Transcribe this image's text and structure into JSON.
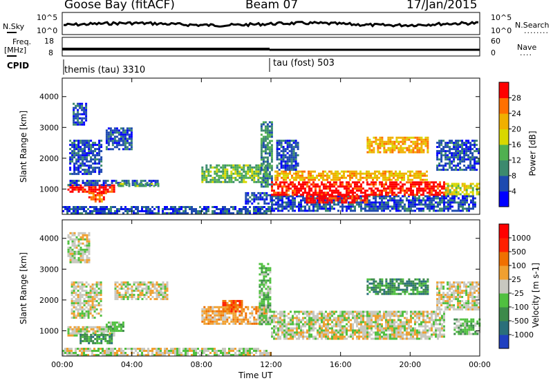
{
  "header": {
    "station": "Goose Bay (fitACF)",
    "beam": "Beam 07",
    "date": "17/Jan/2015"
  },
  "noise_panel": {
    "left_label_top": "N.Sky",
    "right_label_top": "N.Search",
    "right_dots": "........",
    "left_ticks": [
      "10^5",
      "10^0"
    ],
    "right_ticks": [
      "10^5",
      "10^0"
    ]
  },
  "freq_panel": {
    "left_label": "Freq.",
    "left_unit": "[MHz]",
    "right_label": "Nave",
    "right_dots": "....",
    "left_ticks": [
      "18",
      "8"
    ],
    "right_ticks": [
      "60",
      "0"
    ]
  },
  "cpid": {
    "label": "CPID",
    "modes": [
      "themis (tau) 3310",
      "tau (fost) 503"
    ]
  },
  "chart_data": [
    {
      "type": "heatmap",
      "title": "",
      "xlabel": "Time UT",
      "ylabel": "Slant Range [km]",
      "x_ticks": [
        "00:00",
        "04:00",
        "08:00",
        "12:00",
        "16:00",
        "20:00",
        "00:00"
      ],
      "y_ticks": [
        "1000",
        "2000",
        "3000",
        "4000"
      ],
      "xlim_hours": [
        0,
        24
      ],
      "ylim_km": [
        180,
        4600
      ],
      "colorbar": {
        "label": "Power [dB]",
        "ticks": [
          "4",
          "8",
          "12",
          "16",
          "20",
          "24",
          "28"
        ],
        "colors": [
          "#0000ff",
          "#1e4ab0",
          "#3c8a6e",
          "#50b050",
          "#d8d800",
          "#f0b000",
          "#ff7000",
          "#ff0000"
        ]
      },
      "regions": [
        {
          "t0": 0.0,
          "t1": 12.0,
          "r0": 200,
          "r1": 450,
          "level": 1
        },
        {
          "t0": 0.3,
          "t1": 3.0,
          "r0": 900,
          "r1": 1150,
          "level": 7
        },
        {
          "t0": 1.5,
          "t1": 2.5,
          "r0": 600,
          "r1": 900,
          "level": 6
        },
        {
          "t0": 0.3,
          "t1": 5.5,
          "r0": 1100,
          "r1": 1300,
          "level": 1
        },
        {
          "t0": 3.2,
          "t1": 5.5,
          "r0": 1080,
          "r1": 1200,
          "level": 3
        },
        {
          "t0": 0.4,
          "t1": 2.2,
          "r0": 1500,
          "r1": 2600,
          "level": 1
        },
        {
          "t0": 0.6,
          "t1": 1.4,
          "r0": 3100,
          "r1": 3800,
          "level": 1
        },
        {
          "t0": 2.5,
          "t1": 4.0,
          "r0": 2300,
          "r1": 3000,
          "level": 1
        },
        {
          "t0": 8.0,
          "t1": 11.8,
          "r0": 1200,
          "r1": 1800,
          "level": 3
        },
        {
          "t0": 10.5,
          "t1": 12.0,
          "r0": 500,
          "r1": 900,
          "level": 1
        },
        {
          "t0": 11.4,
          "t1": 12.0,
          "r0": 1100,
          "r1": 3200,
          "level": 2
        },
        {
          "t0": 12.0,
          "t1": 23.8,
          "r0": 300,
          "r1": 800,
          "level": 1
        },
        {
          "t0": 12.0,
          "t1": 22.0,
          "r0": 800,
          "r1": 1250,
          "level": 7
        },
        {
          "t0": 12.2,
          "t1": 21.0,
          "r0": 1300,
          "r1": 1600,
          "level": 5
        },
        {
          "t0": 14.0,
          "t1": 17.5,
          "r0": 550,
          "r1": 800,
          "level": 7
        },
        {
          "t0": 12.3,
          "t1": 13.6,
          "r0": 1600,
          "r1": 2600,
          "level": 1
        },
        {
          "t0": 17.5,
          "t1": 21.0,
          "r0": 2200,
          "r1": 2700,
          "level": 5
        },
        {
          "t0": 21.5,
          "t1": 24.0,
          "r0": 1600,
          "r1": 2600,
          "level": 1
        },
        {
          "t0": 22.0,
          "t1": 24.0,
          "r0": 800,
          "r1": 1200,
          "level": 4
        }
      ]
    },
    {
      "type": "heatmap",
      "title": "",
      "xlabel": "Time UT",
      "ylabel": "Slant Range [km]",
      "x_ticks": [
        "00:00",
        "04:00",
        "08:00",
        "12:00",
        "16:00",
        "20:00",
        "00:00"
      ],
      "y_ticks": [
        "1000",
        "2000",
        "3000",
        "4000"
      ],
      "xlim_hours": [
        0,
        24
      ],
      "ylim_km": [
        180,
        4600
      ],
      "colorbar": {
        "label": "Velocity [m s-1]",
        "ticks": [
          "1000",
          "500",
          "100",
          "25",
          "-25",
          "-100",
          "-500",
          "-1000"
        ],
        "colors": [
          "#2040c0",
          "#2a6f7a",
          "#3c8a4a",
          "#50c040",
          "#c8c8c0",
          "#f0a030",
          "#f07000",
          "#ff2000",
          "#ff0000"
        ]
      },
      "regions": [
        {
          "t0": 0.0,
          "t1": 12.0,
          "r0": 200,
          "r1": 450,
          "level": 4
        },
        {
          "t0": 0.3,
          "t1": 3.0,
          "r0": 850,
          "r1": 1150,
          "level": 4
        },
        {
          "t0": 1.0,
          "t1": 2.8,
          "r0": 600,
          "r1": 900,
          "level": 2
        },
        {
          "t0": 0.5,
          "t1": 2.2,
          "r0": 1400,
          "r1": 2600,
          "level": 4
        },
        {
          "t0": 3.0,
          "t1": 6.0,
          "r0": 2000,
          "r1": 2600,
          "level": 4
        },
        {
          "t0": 0.3,
          "t1": 1.5,
          "r0": 3200,
          "r1": 4200,
          "level": 4
        },
        {
          "t0": 2.5,
          "t1": 3.5,
          "r0": 1000,
          "r1": 1300,
          "level": 3
        },
        {
          "t0": 8.0,
          "t1": 11.8,
          "r0": 1200,
          "r1": 1800,
          "level": 5
        },
        {
          "t0": 9.2,
          "t1": 10.3,
          "r0": 1600,
          "r1": 2000,
          "level": 6
        },
        {
          "t0": 11.3,
          "t1": 12.0,
          "r0": 1200,
          "r1": 3200,
          "level": 3
        },
        {
          "t0": 12.0,
          "t1": 22.0,
          "r0": 750,
          "r1": 1650,
          "level": 4
        },
        {
          "t0": 17.5,
          "t1": 21.0,
          "r0": 2200,
          "r1": 2700,
          "level": 2
        },
        {
          "t0": 21.5,
          "t1": 24.0,
          "r0": 1700,
          "r1": 2600,
          "level": 4
        },
        {
          "t0": 22.5,
          "t1": 24.0,
          "r0": 900,
          "r1": 1400,
          "level": 3
        }
      ]
    }
  ]
}
